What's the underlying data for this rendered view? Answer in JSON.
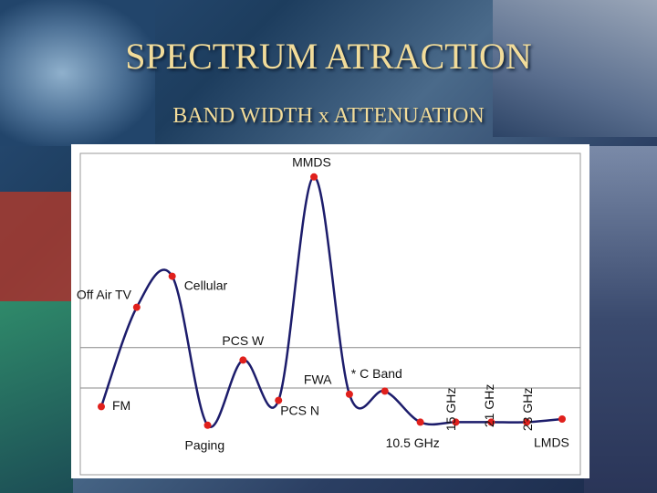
{
  "chart_data": {
    "type": "line",
    "title": "SPECTRUM ATRACTION",
    "subtitle": "BAND WIDTH x ATTENUATION",
    "categories": [
      "FM",
      "Off Air TV",
      "Cellular",
      "Paging",
      "PCS W",
      "PCS N",
      "MMDS",
      "FWA",
      "* C Band",
      "10.5 GHz",
      "15 GHz",
      "21 GHz",
      "23 GHz",
      "LMDS"
    ],
    "values": [
      19,
      51,
      61,
      13,
      34,
      21,
      93,
      23,
      24,
      14,
      14,
      14,
      14,
      15
    ],
    "line_color": "#1c1c6b",
    "marker_color": "#e0201c",
    "ylim": [
      0,
      100
    ],
    "yticks": [
      25,
      38
    ],
    "grid": true
  }
}
